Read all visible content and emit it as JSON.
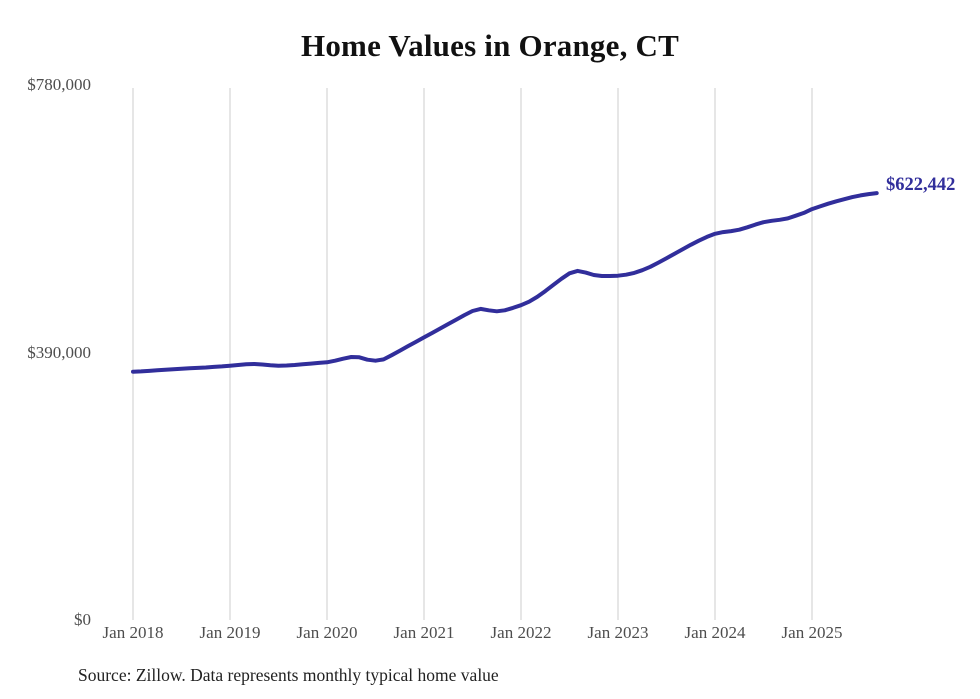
{
  "chart_data": {
    "type": "line",
    "title": "Home Values in Orange, CT",
    "source_note": "Source: Zillow. Data represents monthly typical home value",
    "end_label": "$622,442",
    "latest_value": 622442,
    "ylim": [
      0,
      780000
    ],
    "grid": "vertical-only",
    "legend": "none",
    "colors": {
      "line": "#312e9b",
      "end_label": "#312e9b",
      "gridline": "#cccccc",
      "tick_text": "#4d4d4d",
      "title_text": "#111111"
    },
    "y_ticks": [
      {
        "label": "$0",
        "value": 0
      },
      {
        "label": "$390,000",
        "value": 390000
      },
      {
        "label": "$780,000",
        "value": 780000
      }
    ],
    "x_ticks": [
      {
        "label": "Jan 2018",
        "month_index": 0
      },
      {
        "label": "Jan 2019",
        "month_index": 12
      },
      {
        "label": "Jan 2020",
        "month_index": 24
      },
      {
        "label": "Jan 2021",
        "month_index": 36
      },
      {
        "label": "Jan 2022",
        "month_index": 48
      },
      {
        "label": "Jan 2023",
        "month_index": 60
      },
      {
        "label": "Jan 2024",
        "month_index": 72
      },
      {
        "label": "Jan 2025",
        "month_index": 84
      }
    ],
    "series": [
      {
        "name": "Monthly typical home value",
        "start_month": "Jan 2018",
        "frequency": "monthly",
        "values": [
          362000,
          362500,
          363200,
          364000,
          364800,
          365600,
          366300,
          367000,
          367600,
          368200,
          369000,
          369800,
          370800,
          371800,
          372800,
          373200,
          372500,
          371500,
          370800,
          371000,
          371800,
          372800,
          373800,
          374800,
          375700,
          378000,
          381000,
          383500,
          383000,
          379500,
          378000,
          380000,
          386000,
          392500,
          399000,
          405500,
          412000,
          418500,
          425000,
          431500,
          438000,
          444500,
          450500,
          453500,
          451500,
          450000,
          451500,
          455000,
          459000,
          464000,
          471000,
          479500,
          488500,
          497500,
          505500,
          509000,
          506500,
          503000,
          501500,
          501500,
          502000,
          503500,
          506000,
          510000,
          515000,
          521000,
          527500,
          534000,
          540500,
          547000,
          553000,
          558500,
          563000,
          565500,
          567000,
          569000,
          572500,
          576500,
          580000,
          582000,
          583500,
          585500,
          589500,
          593500,
          599000,
          603000,
          607000,
          610500,
          613500,
          616500,
          619000,
          621000,
          622442
        ]
      }
    ]
  }
}
